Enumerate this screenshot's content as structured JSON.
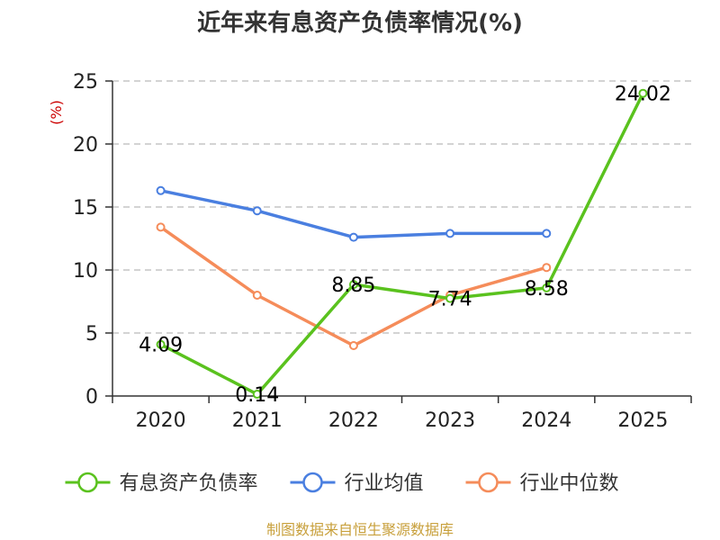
{
  "chart_data": {
    "type": "line",
    "title": "近年来有息资产负债率情况(%)",
    "ylabel": "(%)",
    "xlabel": "",
    "categories": [
      "2020",
      "2021",
      "2022",
      "2023",
      "2024",
      "2025"
    ],
    "ylim": [
      0,
      25
    ],
    "yticks": [
      0,
      5,
      10,
      15,
      20,
      25
    ],
    "grid": true,
    "legend_position": "bottom",
    "series": [
      {
        "name": "有息资产负债率",
        "color": "#5ac21e",
        "values": [
          4.09,
          0.14,
          8.85,
          7.74,
          8.58,
          24.02
        ],
        "labels": [
          "4.09",
          "0.14",
          "8.85",
          "7.74",
          "8.58",
          "24.02"
        ]
      },
      {
        "name": "行业均值",
        "color": "#4a7fe0",
        "values": [
          16.3,
          14.7,
          12.6,
          12.9,
          12.9,
          null
        ]
      },
      {
        "name": "行业中位数",
        "color": "#f58c5a",
        "values": [
          13.4,
          8.0,
          4.0,
          8.0,
          10.2,
          null
        ]
      }
    ],
    "source": "制图数据来自恒生聚源数据库"
  }
}
